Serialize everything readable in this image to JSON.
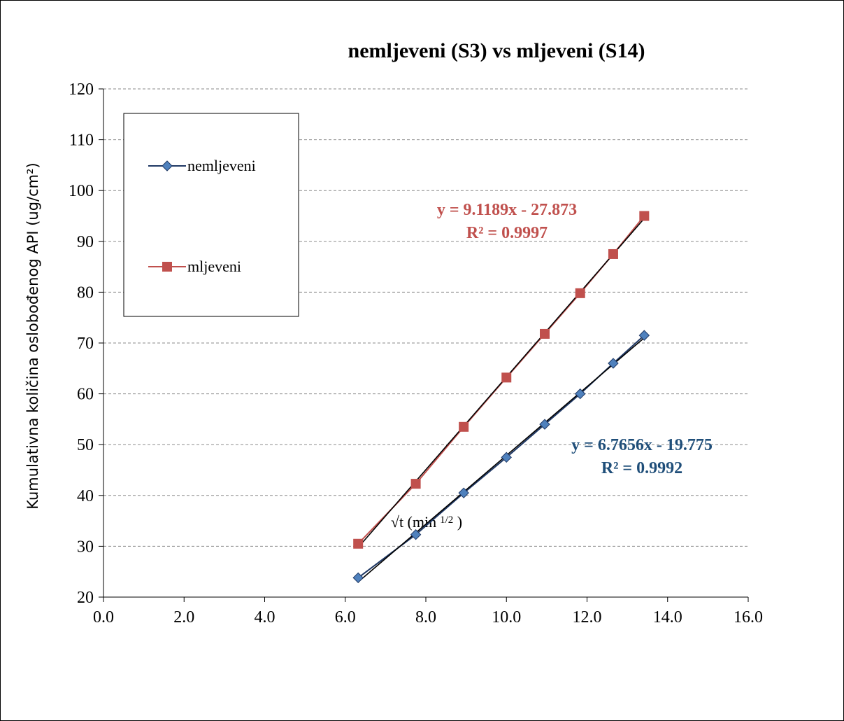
{
  "chart_data": {
    "type": "scatter",
    "title": "nemljeveni (S3) vs mljeveni (S14)",
    "xlabel": "√t (min",
    "xlabel_sup": "1/2",
    "xlabel_end": " )",
    "ylabel": "Kumulativna količina oslobođenog API (ug/cm²)",
    "xlim": [
      0,
      16
    ],
    "ylim": [
      20,
      120
    ],
    "x_ticks": [
      "0.0",
      "2.0",
      "4.0",
      "6.0",
      "8.0",
      "10.0",
      "12.0",
      "14.0",
      "16.0"
    ],
    "y_ticks": [
      "20",
      "30",
      "40",
      "50",
      "60",
      "70",
      "80",
      "90",
      "100",
      "110",
      "120"
    ],
    "grid": "horizontal dashed",
    "legend_position": "top-left",
    "series": [
      {
        "name": "nemljeveni",
        "marker": "diamond",
        "color": "#4F81BD",
        "line_color": "#1F3864",
        "x": [
          6.32,
          7.75,
          8.94,
          10.0,
          10.95,
          11.83,
          12.65,
          13.42
        ],
        "y": [
          23.8,
          32.3,
          40.5,
          47.5,
          54.0,
          60.0,
          66.0,
          71.5
        ],
        "trendline": {
          "slope": 6.7656,
          "intercept": -19.775,
          "equation": "y = 6.7656x - 19.775",
          "r2": "R² = 0.9992",
          "label_color": "#1F4E79"
        }
      },
      {
        "name": "mljeveni",
        "marker": "square",
        "color": "#C0504D",
        "line_color": "#C0504D",
        "x": [
          6.32,
          7.75,
          8.94,
          10.0,
          10.95,
          11.83,
          12.65,
          13.42
        ],
        "y": [
          30.5,
          42.3,
          53.5,
          63.2,
          71.8,
          79.8,
          87.5,
          95.0
        ],
        "trendline": {
          "slope": 9.1189,
          "intercept": -27.873,
          "equation": "y = 9.1189x - 27.873",
          "r2": "R² = 0.9997",
          "label_color": "#C0504D"
        }
      }
    ]
  }
}
